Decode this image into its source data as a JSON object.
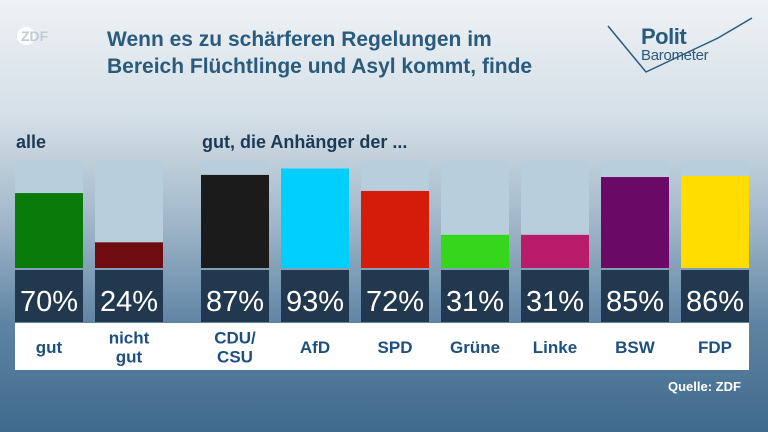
{
  "title": "Wenn es zu schärferen Regelungen im\nBereich Flüchtlinge und Asyl kommt, finde",
  "logo": {
    "brand": "ZDF"
  },
  "polit": {
    "line1": "Polit",
    "line2": "Barometer"
  },
  "group_labels": {
    "all": "alle",
    "fans": "gut, die Anhänger der ..."
  },
  "source": "Quelle: ZDF",
  "colors": {
    "bar_background": "#b9cedd",
    "value_band": "#21384f",
    "title": "#2a5a7c",
    "category_text": "#1d4f80"
  },
  "chart_data": {
    "type": "bar",
    "title": "Wenn es zu schärferen Regelungen im Bereich Flüchtlinge und Asyl kommt, finde",
    "ylim": [
      0,
      100
    ],
    "categories": [
      "gut",
      "nicht gut",
      "CDU/ CSU",
      "AfD",
      "SPD",
      "Grüne",
      "Linke",
      "BSW",
      "FDP"
    ],
    "values": [
      70,
      24,
      87,
      93,
      72,
      31,
      31,
      85,
      86
    ],
    "value_labels": [
      "70%",
      "24%",
      "87%",
      "93%",
      "72%",
      "31%",
      "31%",
      "85%",
      "86%"
    ],
    "bar_colors": [
      "#087b08",
      "#6e0c12",
      "#1b1b1b",
      "#00cffc",
      "#d51c0a",
      "#35d61b",
      "#b81c6a",
      "#6a0a66",
      "#ffdd00"
    ],
    "groups": [
      "alle",
      "alle",
      "gut, die Anhänger der ...",
      "gut, die Anhänger der ...",
      "gut, die Anhänger der ...",
      "gut, die Anhänger der ...",
      "gut, die Anhänger der ...",
      "gut, die Anhänger der ...",
      "gut, die Anhänger der ..."
    ]
  }
}
